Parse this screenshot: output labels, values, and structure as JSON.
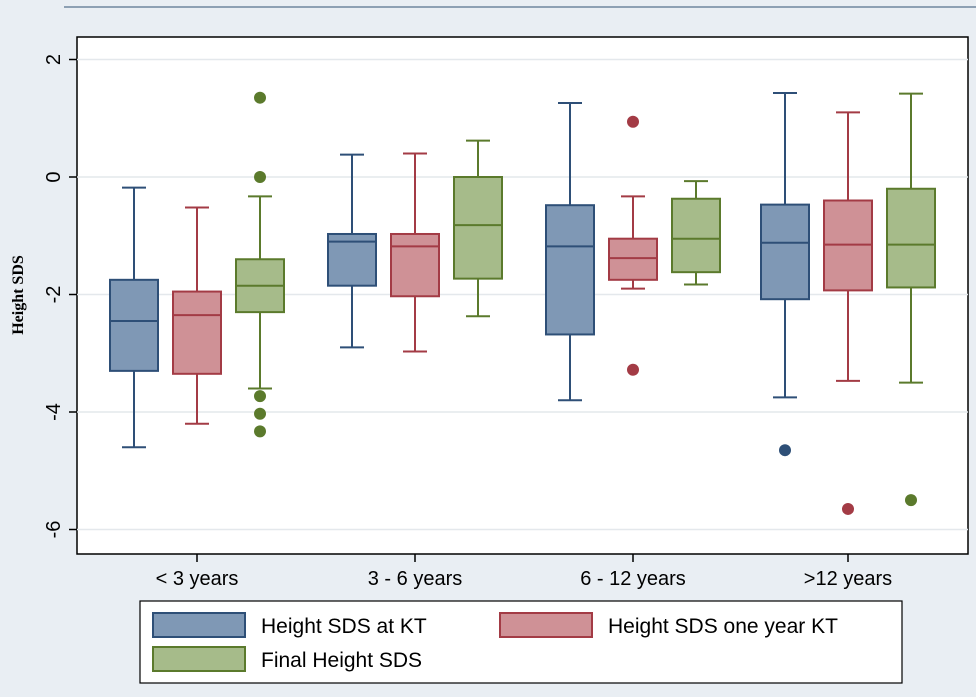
{
  "chart_data": {
    "type": "box",
    "ylabel": "Height SDS",
    "ylim": [
      -6.5,
      2.4
    ],
    "yticks": [
      2,
      0,
      -2,
      -4,
      -6
    ],
    "grid": true,
    "legend_position": "bottom",
    "categories": [
      "< 3 years",
      "3 - 6 years",
      "6 - 12 years",
      ">12 years"
    ],
    "series": [
      {
        "name": "Height SDS at KT",
        "color": "#2e4f77",
        "fill": "#7f98b5",
        "boxes": [
          {
            "whisker_low": -4.6,
            "q1": -3.3,
            "median": -2.45,
            "q3": -1.75,
            "whisker_high": -0.18,
            "outliers": []
          },
          {
            "whisker_low": -2.9,
            "q1": -1.85,
            "median": -1.1,
            "q3": -0.97,
            "whisker_high": 0.38,
            "outliers": []
          },
          {
            "whisker_low": -3.8,
            "q1": -2.68,
            "median": -1.18,
            "q3": -0.48,
            "whisker_high": 1.26,
            "outliers": []
          },
          {
            "whisker_low": -3.75,
            "q1": -2.08,
            "median": -1.12,
            "q3": -0.47,
            "whisker_high": 1.43,
            "outliers": [
              -4.65
            ]
          }
        ]
      },
      {
        "name": "Height SDS one year KT",
        "color": "#a33b45",
        "fill": "#cf9196",
        "boxes": [
          {
            "whisker_low": -4.2,
            "q1": -3.35,
            "median": -2.35,
            "q3": -1.95,
            "whisker_high": -0.52,
            "outliers": []
          },
          {
            "whisker_low": -2.97,
            "q1": -2.03,
            "median": -1.18,
            "q3": -0.97,
            "whisker_high": 0.4,
            "outliers": []
          },
          {
            "whisker_low": -1.9,
            "q1": -1.75,
            "median": -1.38,
            "q3": -1.05,
            "whisker_high": -0.33,
            "outliers": [
              0.94,
              -3.28
            ]
          },
          {
            "whisker_low": -3.47,
            "q1": -1.93,
            "median": -1.15,
            "q3": -0.4,
            "whisker_high": 1.1,
            "outliers": [
              -5.65
            ]
          }
        ]
      },
      {
        "name": "Final Height SDS",
        "color": "#5b7a2c",
        "fill": "#a6bb8a",
        "boxes": [
          {
            "whisker_low": -3.6,
            "q1": -2.3,
            "median": -1.85,
            "q3": -1.4,
            "whisker_high": -0.33,
            "outliers": [
              1.35,
              0.0,
              -3.73,
              -4.03,
              -4.33
            ]
          },
          {
            "whisker_low": -2.37,
            "q1": -1.73,
            "median": -0.82,
            "q3": 0.0,
            "whisker_high": 0.62,
            "outliers": []
          },
          {
            "whisker_low": -1.83,
            "q1": -1.62,
            "median": -1.05,
            "q3": -0.37,
            "whisker_high": -0.07,
            "outliers": []
          },
          {
            "whisker_low": -3.5,
            "q1": -1.88,
            "median": -1.15,
            "q3": -0.2,
            "whisker_high": 1.42,
            "outliers": [
              -5.5
            ]
          }
        ]
      }
    ]
  }
}
